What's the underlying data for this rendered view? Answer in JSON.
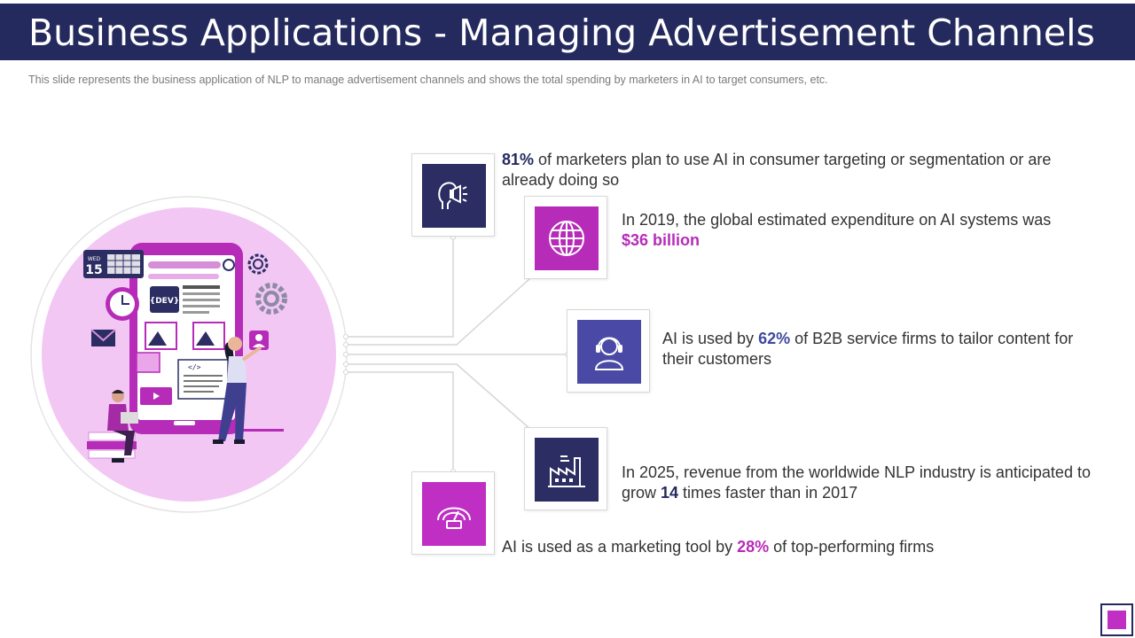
{
  "header": {
    "title": "Business Applications - Managing Advertisement Channels",
    "subtitle": "This slide represents the business application of NLP to manage advertisement  channels and shows the total spending by marketers in AI to target consumers, etc."
  },
  "hero": {
    "calendar_day": "WED",
    "calendar_date": "15",
    "dev_label": "{DEV}",
    "code_label": "</>"
  },
  "stats": [
    {
      "highlight": "81%",
      "text": " of marketers plan to use AI in consumer targeting or segmentation or are already doing so",
      "icon": "megaphone-head-icon",
      "tile_color": "#2b2d63",
      "highlight_color": "#252a5e"
    },
    {
      "prefix": "In 2019, the global estimated expenditure on AI systems was ",
      "highlight": "$36 billion",
      "icon": "globe-icon",
      "tile_color": "#b62cb8",
      "highlight_color": "#b62cb8"
    },
    {
      "prefix": "AI is used by ",
      "highlight": "62%",
      "text": " of B2B service firms to tailor content for their customers",
      "icon": "headset-agent-icon",
      "tile_color": "#4a4aa6",
      "highlight_color": "#3e4a9c"
    },
    {
      "prefix": "In 2025, revenue from the worldwide NLP industry is anticipated to grow ",
      "highlight": "14",
      "text": " times faster than  in 2017",
      "icon": "factory-icon",
      "tile_color": "#2b2d63",
      "highlight_color": "#252a5e"
    },
    {
      "prefix": "AI is used as a marketing tool by ",
      "highlight": "28%",
      "text": " of top-performing firms",
      "icon": "speedometer-icon",
      "tile_color": "#c02fc4",
      "highlight_color": "#b62cb8"
    }
  ],
  "colors": {
    "navy": "#252a5e",
    "purple": "#b62cb8",
    "light_pink": "#f0c6f2"
  }
}
